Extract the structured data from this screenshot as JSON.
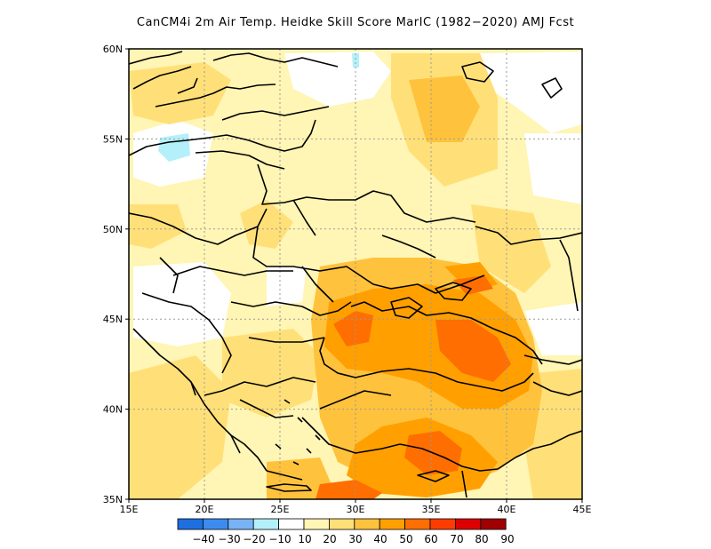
{
  "title": "CanCM4i  2m Air Temp. Heidke Skill Score MarIC (1982-2020) AMJ Fcst",
  "map": {
    "lon_range": [
      15,
      45
    ],
    "lat_range": [
      35,
      60
    ],
    "lon_ticks": [
      "15E",
      "20E",
      "25E",
      "30E",
      "35E",
      "40E",
      "45E"
    ],
    "lat_ticks": [
      "35N",
      "40N",
      "45N",
      "50N",
      "55N",
      "60N"
    ],
    "grid": "dotted"
  },
  "colorbar": {
    "labels": [
      "-40",
      "-30",
      "-20",
      "-10",
      "10",
      "20",
      "30",
      "40",
      "50",
      "60",
      "70",
      "80",
      "90"
    ],
    "colors": [
      "#1e6fe0",
      "#3c8cf0",
      "#78b4f5",
      "#b4f0fa",
      "#ffffff",
      "#fff5b4",
      "#ffe078",
      "#ffc23c",
      "#ffa000",
      "#ff6e00",
      "#ff3c00",
      "#dc0000",
      "#a00000"
    ]
  }
}
